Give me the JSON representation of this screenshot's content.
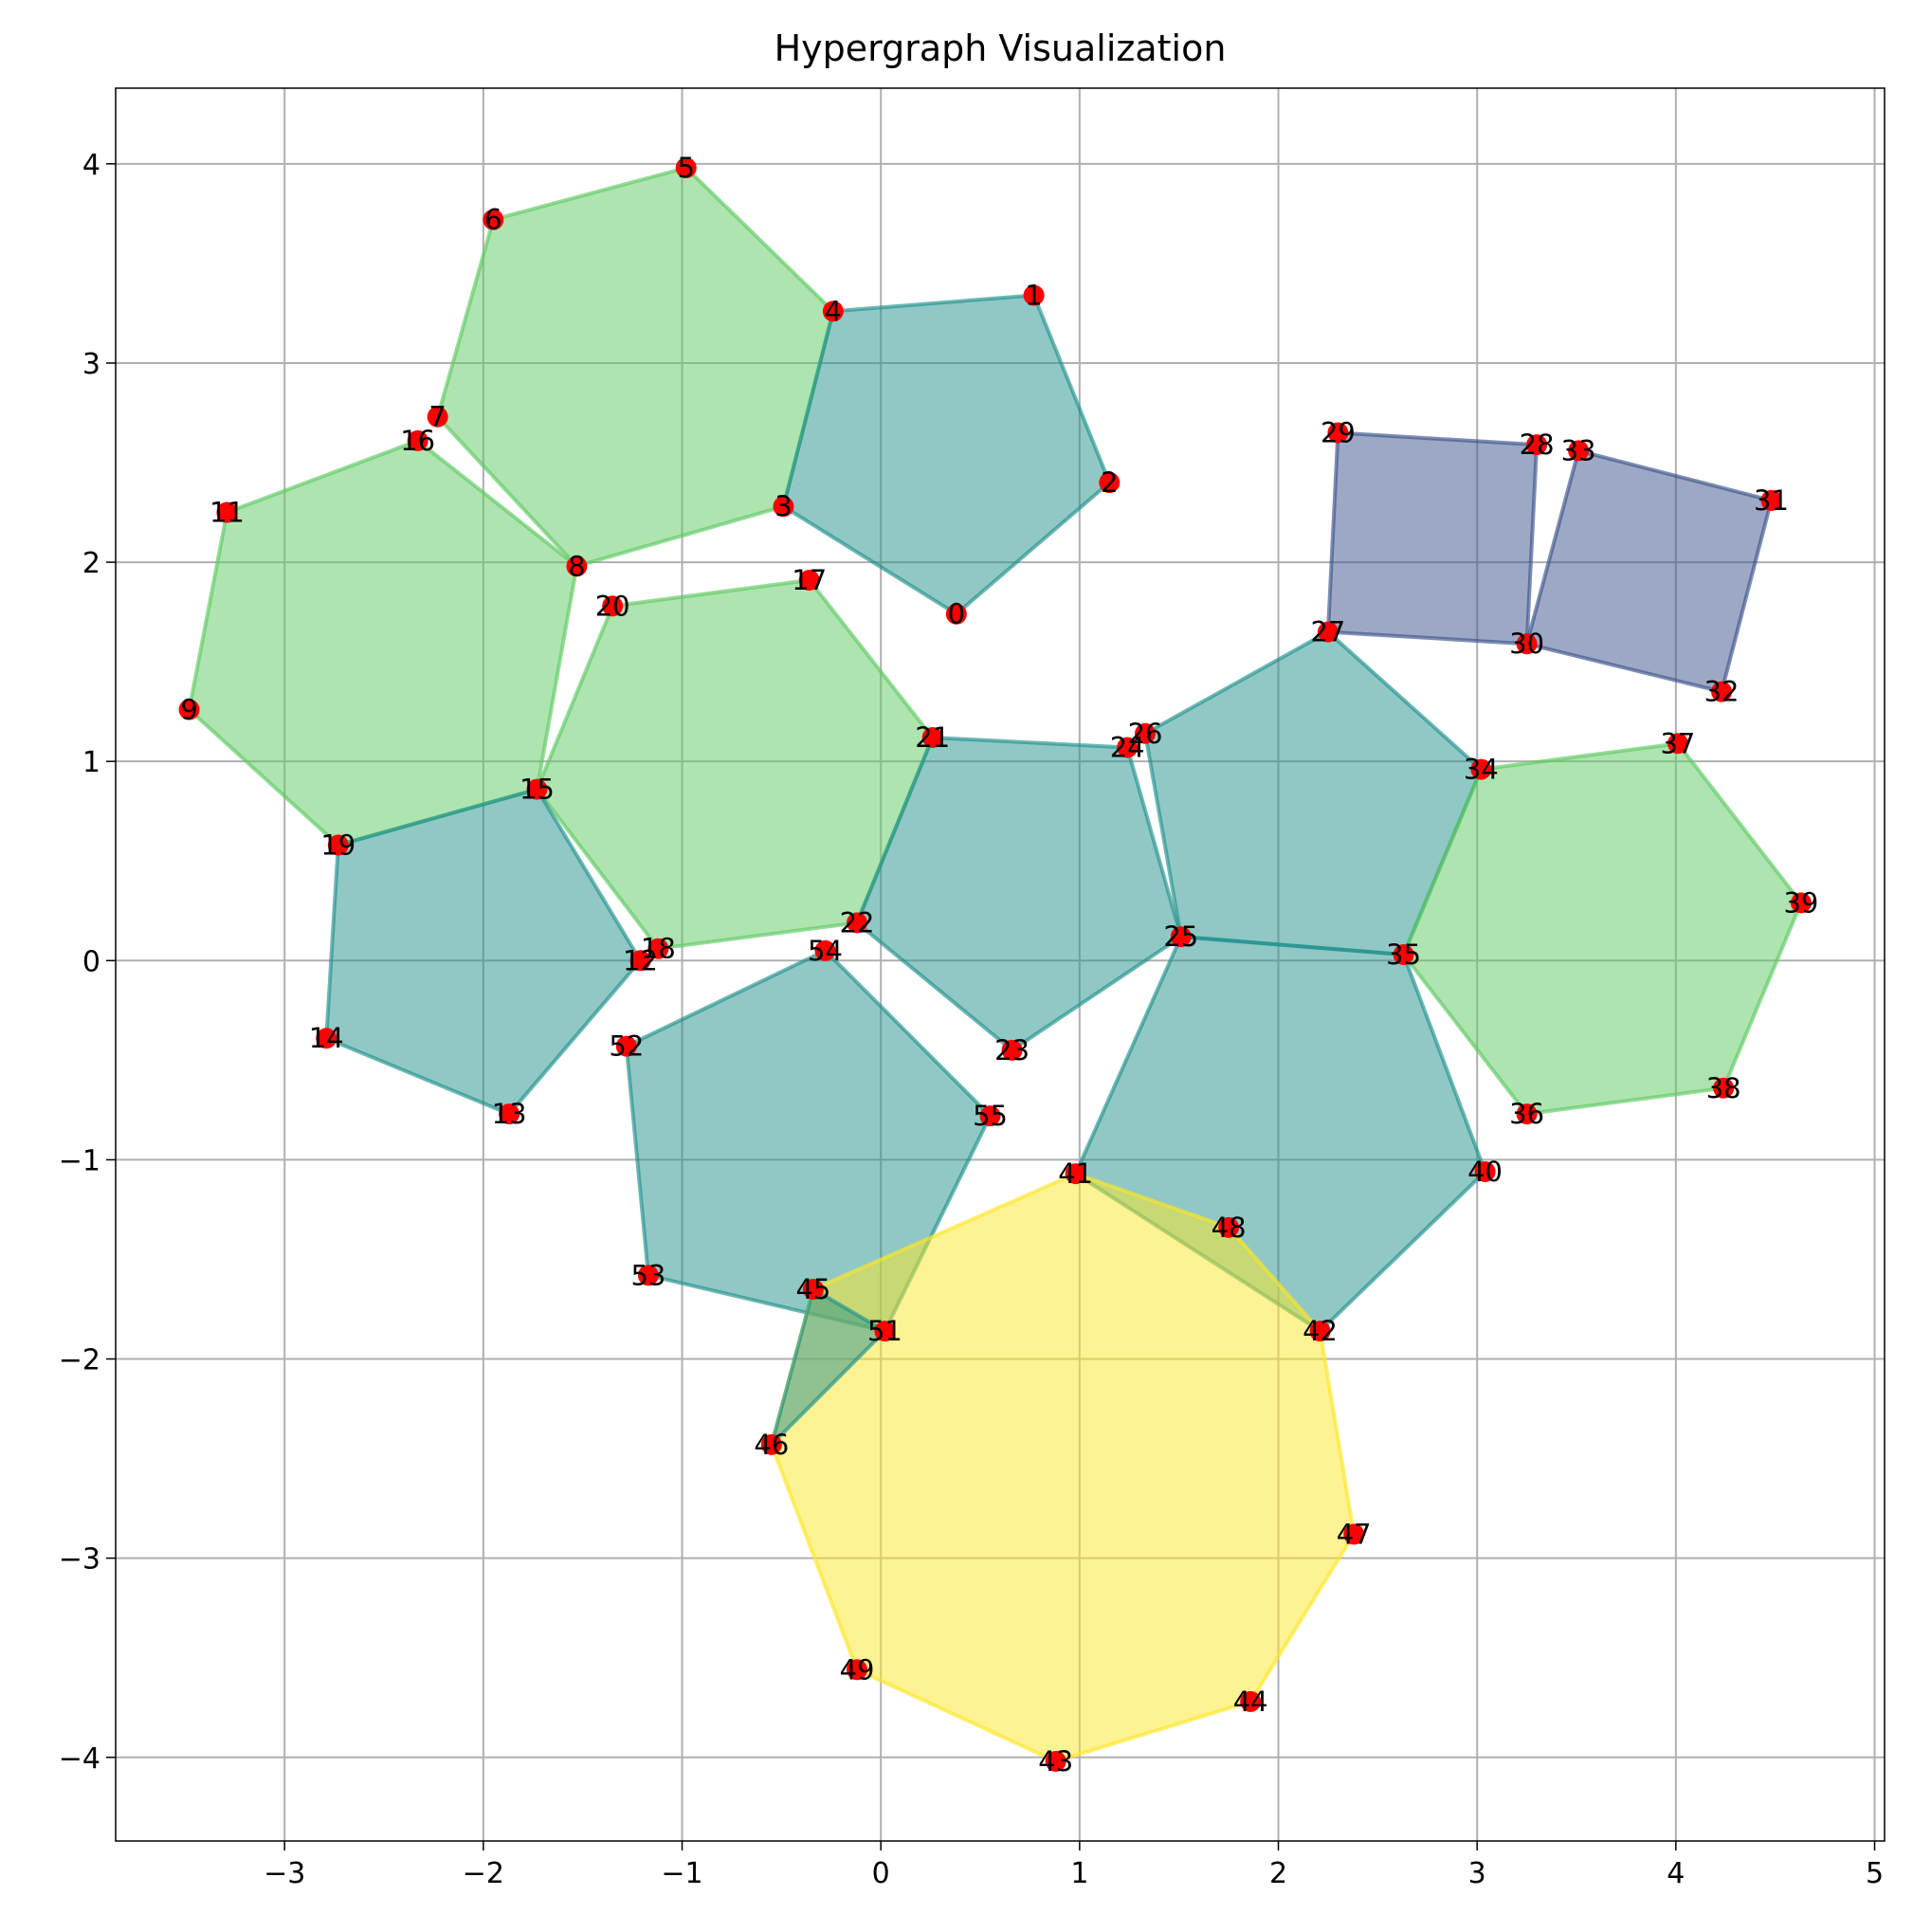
{
  "chart_data": {
    "type": "scatter",
    "title": "Hypergraph Visualization",
    "xlabel": "",
    "ylabel": "",
    "xlim": [
      -3.85,
      5.05
    ],
    "ylim": [
      -4.42,
      4.38
    ],
    "xticks": [
      -3,
      -2,
      -1,
      0,
      1,
      2,
      3,
      4,
      5
    ],
    "yticks": [
      -4,
      -3,
      -2,
      -1,
      0,
      1,
      2,
      3,
      4
    ],
    "xtick_labels": [
      "−3",
      "−2",
      "−1",
      "0",
      "1",
      "2",
      "3",
      "4",
      "5"
    ],
    "ytick_labels": [
      "−4",
      "−3",
      "−2",
      "−1",
      "0",
      "1",
      "2",
      "3",
      "4"
    ],
    "grid": true,
    "legend": "none",
    "node_color": "#ff0000",
    "nodes": [
      {
        "id": "0",
        "x": 0.38,
        "y": 1.74
      },
      {
        "id": "1",
        "x": 0.77,
        "y": 3.34
      },
      {
        "id": "2",
        "x": 1.15,
        "y": 2.4
      },
      {
        "id": "3",
        "x": -0.49,
        "y": 2.28
      },
      {
        "id": "4",
        "x": -0.24,
        "y": 3.26
      },
      {
        "id": "5",
        "x": -0.98,
        "y": 3.98
      },
      {
        "id": "6",
        "x": -1.95,
        "y": 3.72
      },
      {
        "id": "7",
        "x": -2.23,
        "y": 2.73
      },
      {
        "id": "8",
        "x": -1.53,
        "y": 1.98
      },
      {
        "id": "9",
        "x": -3.48,
        "y": 1.26
      },
      {
        "id": "11",
        "x": -3.29,
        "y": 2.25
      },
      {
        "id": "12",
        "x": -1.21,
        "y": 0.0
      },
      {
        "id": "13",
        "x": -1.87,
        "y": -0.77
      },
      {
        "id": "14",
        "x": -2.79,
        "y": -0.39
      },
      {
        "id": "15",
        "x": -1.73,
        "y": 0.86
      },
      {
        "id": "16",
        "x": -2.33,
        "y": 2.61
      },
      {
        "id": "17",
        "x": -0.36,
        "y": 1.91
      },
      {
        "id": "18",
        "x": -1.12,
        "y": 0.06
      },
      {
        "id": "19",
        "x": -2.73,
        "y": 0.58
      },
      {
        "id": "20",
        "x": -1.35,
        "y": 1.78
      },
      {
        "id": "21",
        "x": 0.26,
        "y": 1.12
      },
      {
        "id": "22",
        "x": -0.12,
        "y": 0.19
      },
      {
        "id": "23",
        "x": 0.66,
        "y": -0.45
      },
      {
        "id": "24",
        "x": 1.24,
        "y": 1.07
      },
      {
        "id": "25",
        "x": 1.51,
        "y": 0.12
      },
      {
        "id": "26",
        "x": 1.33,
        "y": 1.14
      },
      {
        "id": "27",
        "x": 2.25,
        "y": 1.65
      },
      {
        "id": "28",
        "x": 3.3,
        "y": 2.59
      },
      {
        "id": "29",
        "x": 2.3,
        "y": 2.65
      },
      {
        "id": "30",
        "x": 3.25,
        "y": 1.59
      },
      {
        "id": "31",
        "x": 4.48,
        "y": 2.31
      },
      {
        "id": "32",
        "x": 4.23,
        "y": 1.35
      },
      {
        "id": "33",
        "x": 3.51,
        "y": 2.56
      },
      {
        "id": "34",
        "x": 3.02,
        "y": 0.96
      },
      {
        "id": "35",
        "x": 2.63,
        "y": 0.03
      },
      {
        "id": "36",
        "x": 3.25,
        "y": -0.77
      },
      {
        "id": "37",
        "x": 4.01,
        "y": 1.09
      },
      {
        "id": "38",
        "x": 4.24,
        "y": -0.64
      },
      {
        "id": "39",
        "x": 4.63,
        "y": 0.29
      },
      {
        "id": "40",
        "x": 3.04,
        "y": -1.06
      },
      {
        "id": "41",
        "x": 0.98,
        "y": -1.07
      },
      {
        "id": "42",
        "x": 2.21,
        "y": -1.86
      },
      {
        "id": "43",
        "x": 0.88,
        "y": -4.02
      },
      {
        "id": "44",
        "x": 1.86,
        "y": -3.72
      },
      {
        "id": "45",
        "x": -0.34,
        "y": -1.65
      },
      {
        "id": "46",
        "x": -0.55,
        "y": -2.43
      },
      {
        "id": "47",
        "x": 2.38,
        "y": -2.88
      },
      {
        "id": "48",
        "x": 1.75,
        "y": -1.34
      },
      {
        "id": "49",
        "x": -0.12,
        "y": -3.56
      },
      {
        "id": "51",
        "x": 0.02,
        "y": -1.86
      },
      {
        "id": "52",
        "x": -1.28,
        "y": -0.43
      },
      {
        "id": "53",
        "x": -1.17,
        "y": -1.58
      },
      {
        "id": "54",
        "x": -0.28,
        "y": 0.05
      },
      {
        "id": "55",
        "x": 0.55,
        "y": -0.78
      }
    ],
    "hyperedges": [
      {
        "nodes": [
          "5",
          "4",
          "3",
          "8",
          "7",
          "6"
        ],
        "color": "#5ec962"
      },
      {
        "nodes": [
          "4",
          "1",
          "2",
          "0",
          "3"
        ],
        "color": "#21918c"
      },
      {
        "nodes": [
          "16",
          "8",
          "15",
          "19",
          "9",
          "11"
        ],
        "color": "#5ec962"
      },
      {
        "nodes": [
          "20",
          "17",
          "21",
          "22",
          "18",
          "15"
        ],
        "color": "#5ec962"
      },
      {
        "nodes": [
          "15",
          "12",
          "13",
          "14",
          "19"
        ],
        "color": "#21918c"
      },
      {
        "nodes": [
          "21",
          "24",
          "25",
          "23",
          "22"
        ],
        "color": "#21918c"
      },
      {
        "nodes": [
          "26",
          "27",
          "34",
          "35",
          "25"
        ],
        "color": "#21918c"
      },
      {
        "nodes": [
          "29",
          "28",
          "30",
          "27"
        ],
        "color": "#3b528b"
      },
      {
        "nodes": [
          "33",
          "31",
          "32",
          "30"
        ],
        "color": "#3b528b"
      },
      {
        "nodes": [
          "34",
          "37",
          "39",
          "38",
          "36",
          "35"
        ],
        "color": "#5ec962"
      },
      {
        "nodes": [
          "25",
          "35",
          "40",
          "42",
          "41"
        ],
        "color": "#21918c"
      },
      {
        "nodes": [
          "54",
          "55",
          "51",
          "53",
          "52"
        ],
        "color": "#21918c"
      },
      {
        "nodes": [
          "41",
          "48",
          "42",
          "47",
          "44",
          "43",
          "49",
          "46",
          "45"
        ],
        "color": "#fde725"
      },
      {
        "nodes": [
          "45",
          "51",
          "46"
        ],
        "color": "#21918c"
      }
    ]
  }
}
